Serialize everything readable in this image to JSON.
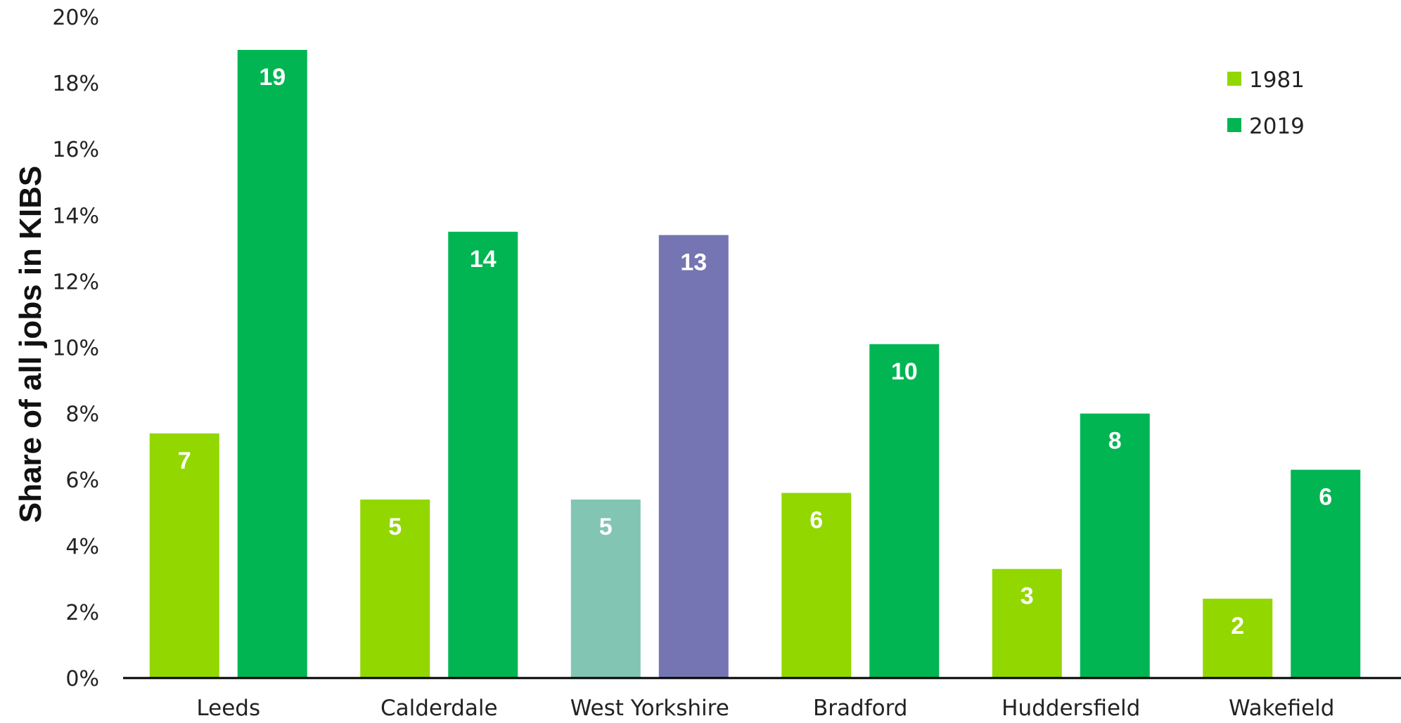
{
  "chart_data": {
    "type": "bar",
    "ylabel": "Share of all jobs in KIBS",
    "xlabel": "",
    "ylim": [
      0,
      20
    ],
    "yticks": [
      "0%",
      "2%",
      "4%",
      "6%",
      "8%",
      "10%",
      "12%",
      "14%",
      "16%",
      "18%",
      "20%"
    ],
    "categories": [
      "Leeds",
      "Calderdale",
      "West Yorkshire",
      "Bradford",
      "Huddersfield",
      "Wakefield"
    ],
    "series": [
      {
        "name": "1981",
        "color": "#92d700",
        "values": [
          7.4,
          5.4,
          5.4,
          5.6,
          3.3,
          2.4
        ],
        "labels": [
          "7",
          "5",
          "5",
          "6",
          "3",
          "2"
        ],
        "highlight": {
          "West Yorkshire": "#82c5b2"
        }
      },
      {
        "name": "2019",
        "color": "#00b552",
        "values": [
          19.0,
          13.5,
          13.4,
          10.1,
          8.0,
          6.3
        ],
        "labels": [
          "19",
          "14",
          "13",
          "10",
          "8",
          "6"
        ],
        "highlight": {
          "West Yorkshire": "#7575b3"
        }
      }
    ],
    "legend": {
      "position": "top-right"
    },
    "grid": false
  }
}
